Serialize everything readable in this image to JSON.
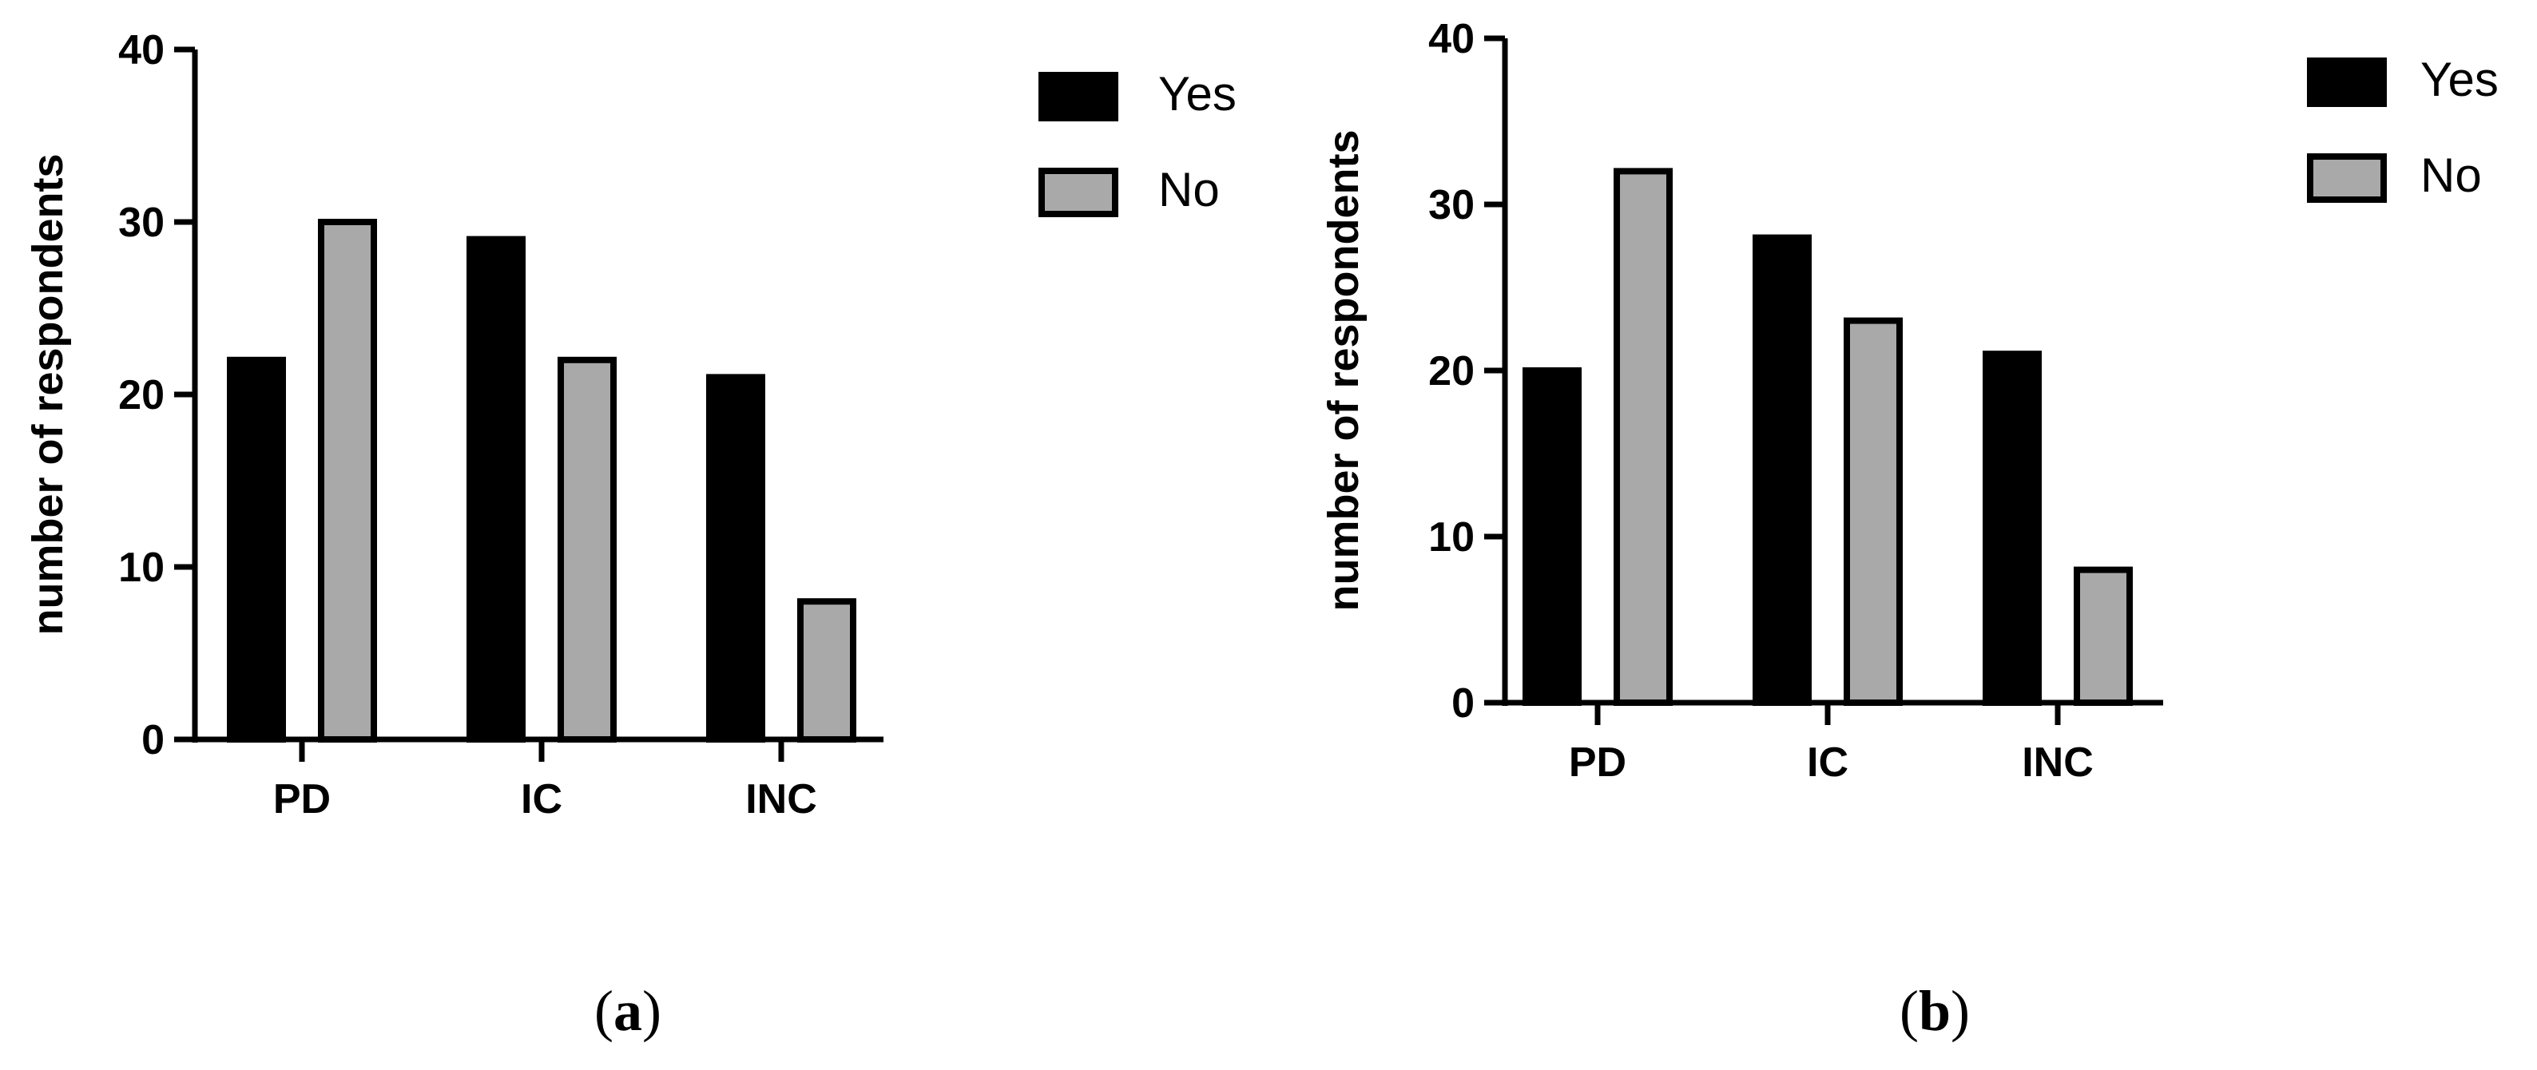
{
  "chart_data": [
    {
      "type": "bar",
      "panel_label": "a",
      "categories": [
        "PD",
        "IC",
        "INC"
      ],
      "series": [
        {
          "name": "Yes",
          "values": [
            22,
            29,
            21
          ],
          "color": "#000000"
        },
        {
          "name": "No",
          "values": [
            30,
            22,
            8
          ],
          "color": "#a9a9a9"
        }
      ],
      "title": "",
      "xlabel": "",
      "ylabel": "number of respondents",
      "ylim": [
        0,
        40
      ],
      "yticks": [
        0,
        10,
        20,
        30,
        40
      ],
      "grid": false,
      "legend": "top-right"
    },
    {
      "type": "bar",
      "panel_label": "b",
      "categories": [
        "PD",
        "IC",
        "INC"
      ],
      "series": [
        {
          "name": "Yes",
          "values": [
            20,
            28,
            21
          ],
          "color": "#000000"
        },
        {
          "name": "No",
          "values": [
            32,
            23,
            8
          ],
          "color": "#a9a9a9"
        }
      ],
      "title": "",
      "xlabel": "",
      "ylabel": "number of respondents",
      "ylim": [
        0,
        40
      ],
      "yticks": [
        0,
        10,
        20,
        30,
        40
      ],
      "grid": false,
      "legend": "top-right"
    }
  ]
}
